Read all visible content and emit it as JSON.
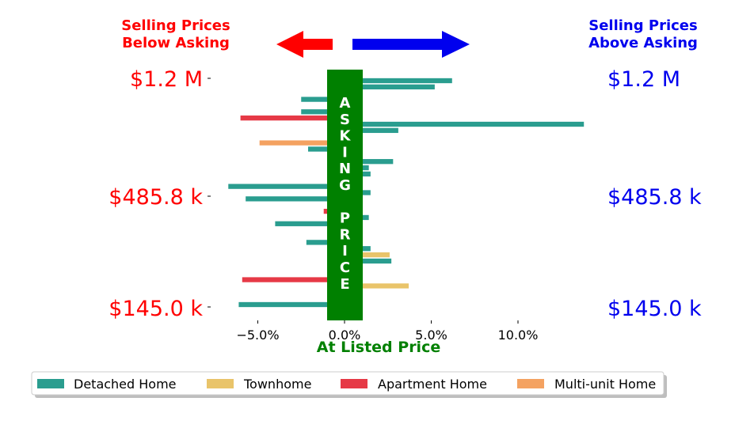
{
  "colors": {
    "detached": "#2a9d8f",
    "townhome": "#e9c46a",
    "apartment": "#e63946",
    "multiunit": "#f4a261",
    "below": "#ff0000",
    "above": "#0000ee",
    "asking": "#008000"
  },
  "header": {
    "below_line1": "Selling Prices",
    "below_line2": "Below Asking",
    "above_line1": "Selling Prices",
    "above_line2": "Above Asking"
  },
  "center_label": {
    "letters": [
      "A",
      "S",
      "K",
      "I",
      "N",
      "G",
      "",
      "P",
      "R",
      "I",
      "C",
      "E"
    ],
    "xlabel": "At Listed Price"
  },
  "price_labels": {
    "left_top": "$1.2 M",
    "left_mid": "$485.8 k",
    "left_bottom": "$145.0 k",
    "right_top": "$1.2 M",
    "right_mid": "$485.8 k",
    "right_bottom": "$145.0 k"
  },
  "chart_data": {
    "type": "bar",
    "orientation": "horizontal",
    "xlabel": "At Listed Price",
    "xlim": [
      -7.0,
      14.0
    ],
    "x_ticks": [
      -5.0,
      0.0,
      5.0,
      10.0
    ],
    "x_tick_labels": [
      "−5.0%",
      "0.0%",
      "5.0%",
      "10.0%"
    ],
    "y_tick_labels": [
      "$1.2 M",
      "$485.8 k",
      "$145.0 k"
    ],
    "series": [
      {
        "name": "Detached Home",
        "key": "detached"
      },
      {
        "name": "Townhome",
        "key": "townhome"
      },
      {
        "name": "Apartment Home",
        "key": "apartment"
      },
      {
        "name": "Multi-unit Home",
        "key": "multiunit"
      }
    ],
    "bars": [
      {
        "type": "detached",
        "value": 6.2
      },
      {
        "type": "detached",
        "value": 5.2
      },
      {
        "type": "detached",
        "value": 0.6
      },
      {
        "type": "detached",
        "value": -2.5
      },
      {
        "type": "detached",
        "value": 0.6
      },
      {
        "type": "detached",
        "value": -2.5
      },
      {
        "type": "apartment",
        "value": -6.0
      },
      {
        "type": "detached",
        "value": 13.8
      },
      {
        "type": "detached",
        "value": 3.1
      },
      {
        "type": "detached",
        "value": 0.6
      },
      {
        "type": "multiunit",
        "value": -4.9
      },
      {
        "type": "detached",
        "value": -2.1
      },
      {
        "type": "detached",
        "value": 0.6
      },
      {
        "type": "detached",
        "value": 2.8
      },
      {
        "type": "detached",
        "value": 1.4
      },
      {
        "type": "detached",
        "value": 1.5
      },
      {
        "type": "townhome",
        "value": 0.6
      },
      {
        "type": "detached",
        "value": -6.7
      },
      {
        "type": "detached",
        "value": 1.5
      },
      {
        "type": "detached",
        "value": -5.7
      },
      {
        "type": "detached",
        "value": 0.6
      },
      {
        "type": "apartment",
        "value": -1.2
      },
      {
        "type": "detached",
        "value": 1.4
      },
      {
        "type": "detached",
        "value": -4.0
      },
      {
        "type": "detached",
        "value": 0.6
      },
      {
        "type": "detached",
        "value": 0.6
      },
      {
        "type": "detached",
        "value": -2.2
      },
      {
        "type": "detached",
        "value": 1.5
      },
      {
        "type": "townhome",
        "value": 2.6
      },
      {
        "type": "detached",
        "value": 2.7
      },
      {
        "type": "detached",
        "value": 0.6
      },
      {
        "type": "detached",
        "value": 0.6
      },
      {
        "type": "apartment",
        "value": -5.9
      },
      {
        "type": "townhome",
        "value": 3.7
      },
      {
        "type": "apartment",
        "value": 0.6
      },
      {
        "type": "detached",
        "value": 0.6
      },
      {
        "type": "detached",
        "value": -6.1
      }
    ],
    "grid": false,
    "legend_position": "bottom"
  }
}
